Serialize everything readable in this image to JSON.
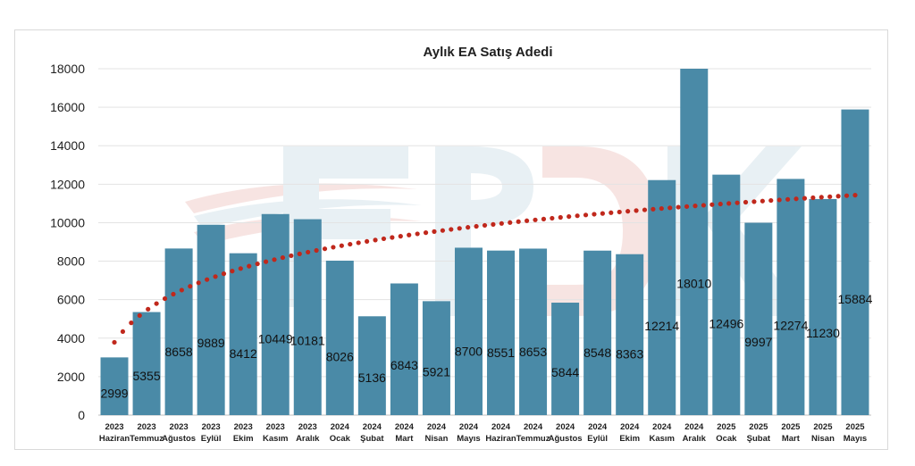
{
  "chart_data": {
    "type": "bar",
    "title": "Aylık EA Satış Adedi",
    "categories": [
      [
        "2023",
        "Haziran"
      ],
      [
        "2023",
        "Temmuz"
      ],
      [
        "2023",
        "Ağustos"
      ],
      [
        "2023",
        "Eylül"
      ],
      [
        "2023",
        "Ekim"
      ],
      [
        "2023",
        "Kasım"
      ],
      [
        "2023",
        "Aralık"
      ],
      [
        "2024",
        "Ocak"
      ],
      [
        "2024",
        "Şubat"
      ],
      [
        "2024",
        "Mart"
      ],
      [
        "2024",
        "Nisan"
      ],
      [
        "2024",
        "Mayıs"
      ],
      [
        "2024",
        "Haziran"
      ],
      [
        "2024",
        "Temmuz"
      ],
      [
        "2024",
        "Ağustos"
      ],
      [
        "2024",
        "Eylül"
      ],
      [
        "2024",
        "Ekim"
      ],
      [
        "2024",
        "Kasım"
      ],
      [
        "2024",
        "Aralık"
      ],
      [
        "2025",
        "Ocak"
      ],
      [
        "2025",
        "Şubat"
      ],
      [
        "2025",
        "Mart"
      ],
      [
        "2025",
        "Nisan"
      ],
      [
        "2025",
        "Mayıs"
      ]
    ],
    "values": [
      2999,
      5355,
      8658,
      9889,
      8412,
      10449,
      10181,
      8026,
      5136,
      6843,
      5921,
      8700,
      8551,
      8653,
      5844,
      8548,
      8363,
      12214,
      18010,
      12496,
      9997,
      12274,
      11230,
      15884
    ],
    "ylim": [
      0,
      18000
    ],
    "yticks": [
      0,
      2000,
      4000,
      6000,
      8000,
      10000,
      12000,
      14000,
      16000,
      18000
    ],
    "grid": true,
    "trendline": {
      "type": "logarithmic",
      "style": "dotted"
    },
    "colors": {
      "bar": "#4a8aa7",
      "trend": "#c0281c"
    },
    "watermark": "EPDK"
  }
}
